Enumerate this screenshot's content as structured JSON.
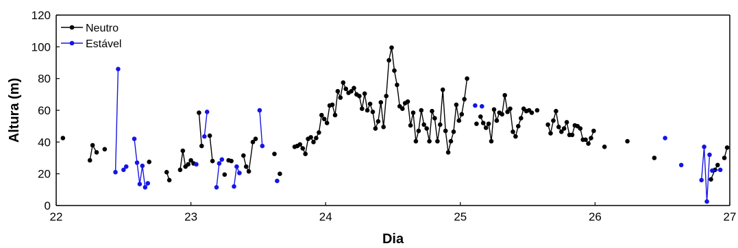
{
  "chart_data": {
    "type": "scatter",
    "title": "",
    "xlabel": "Dia",
    "ylabel": "Altura (m)",
    "xlim": [
      22,
      27
    ],
    "ylim": [
      0,
      120
    ],
    "xticks": [
      22,
      23,
      24,
      25,
      26,
      27
    ],
    "yticks": [
      0,
      20,
      40,
      60,
      80,
      100,
      120
    ],
    "grid": false,
    "legend_position": "top-left",
    "series": [
      {
        "name": "Neutro",
        "color": "#000000",
        "segments": [
          [
            [
              22.05,
              42.5
            ]
          ],
          [
            [
              22.25,
              28.5
            ],
            [
              22.27,
              38
            ],
            [
              22.3,
              33.5
            ]
          ],
          [
            [
              22.36,
              35.5
            ]
          ],
          [
            [
              22.69,
              27.5
            ]
          ],
          [
            [
              22.82,
              21
            ],
            [
              22.84,
              16
            ]
          ],
          [
            [
              22.92,
              22.5
            ],
            [
              22.94,
              34.5
            ],
            [
              22.96,
              24.5
            ],
            [
              22.98,
              26
            ],
            [
              23.0,
              28.5
            ],
            [
              23.02,
              26.5
            ]
          ],
          [
            [
              23.06,
              58.5
            ],
            [
              23.08,
              37.5
            ]
          ],
          [
            [
              23.14,
              44
            ],
            [
              23.16,
              28
            ]
          ],
          [
            [
              23.25,
              19.5
            ]
          ],
          [
            [
              23.28,
              28.5
            ],
            [
              23.3,
              28
            ]
          ],
          [
            [
              23.39,
              31.5
            ],
            [
              23.41,
              24.5
            ],
            [
              23.43,
              21.5
            ],
            [
              23.46,
              40
            ],
            [
              23.48,
              42
            ]
          ],
          [
            [
              23.62,
              32.5
            ]
          ],
          [
            [
              23.66,
              20
            ]
          ],
          [
            [
              23.77,
              37
            ],
            [
              23.79,
              37.5
            ],
            [
              23.81,
              38.5
            ],
            [
              23.83,
              36
            ],
            [
              23.85,
              32.5
            ],
            [
              23.87,
              42
            ],
            [
              23.89,
              43
            ],
            [
              23.91,
              40
            ],
            [
              23.93,
              42.5
            ],
            [
              23.95,
              46
            ],
            [
              23.97,
              57
            ],
            [
              23.99,
              54.5
            ],
            [
              24.01,
              52
            ],
            [
              24.03,
              63
            ],
            [
              24.05,
              63.5
            ],
            [
              24.07,
              57
            ],
            [
              24.09,
              72
            ],
            [
              24.11,
              68
            ],
            [
              24.13,
              77.5
            ],
            [
              24.15,
              73.5
            ],
            [
              24.17,
              71
            ],
            [
              24.19,
              72
            ],
            [
              24.21,
              74
            ],
            [
              24.23,
              70
            ],
            [
              24.25,
              69
            ],
            [
              24.27,
              61
            ],
            [
              24.29,
              70.5
            ],
            [
              24.31,
              60
            ],
            [
              24.33,
              64
            ],
            [
              24.35,
              59
            ],
            [
              24.37,
              48.5
            ],
            [
              24.39,
              53
            ],
            [
              24.41,
              65
            ],
            [
              24.43,
              49.5
            ],
            [
              24.45,
              69
            ],
            [
              24.47,
              91.5
            ],
            [
              24.49,
              99.5
            ],
            [
              24.51,
              85
            ],
            [
              24.53,
              76
            ],
            [
              24.55,
              62.5
            ],
            [
              24.57,
              61
            ],
            [
              24.59,
              64.5
            ],
            [
              24.61,
              65.5
            ],
            [
              24.63,
              50.5
            ],
            [
              24.65,
              58.5
            ],
            [
              24.67,
              40.5
            ],
            [
              24.69,
              47
            ],
            [
              24.71,
              60
            ],
            [
              24.73,
              51
            ],
            [
              24.75,
              48.5
            ],
            [
              24.77,
              40.5
            ],
            [
              24.79,
              59.5
            ],
            [
              24.81,
              55
            ],
            [
              24.83,
              40.5
            ],
            [
              24.85,
              51
            ],
            [
              24.87,
              73
            ],
            [
              24.89,
              47
            ],
            [
              24.91,
              33.5
            ],
            [
              24.93,
              40.5
            ],
            [
              24.95,
              46.5
            ],
            [
              24.97,
              63.5
            ],
            [
              24.99,
              53.5
            ],
            [
              25.01,
              57.5
            ],
            [
              25.03,
              67
            ],
            [
              25.05,
              80
            ]
          ],
          [
            [
              25.12,
              51.5
            ]
          ],
          [
            [
              25.15,
              56
            ],
            [
              25.17,
              52
            ],
            [
              25.19,
              49
            ],
            [
              25.21,
              51.5
            ],
            [
              25.23,
              40.5
            ],
            [
              25.25,
              60.5
            ],
            [
              25.27,
              53.5
            ],
            [
              25.29,
              58.5
            ],
            [
              25.31,
              57.5
            ],
            [
              25.33,
              69.5
            ],
            [
              25.35,
              59
            ],
            [
              25.37,
              61
            ],
            [
              25.39,
              46.5
            ],
            [
              25.41,
              43.5
            ],
            [
              25.43,
              50
            ],
            [
              25.45,
              55
            ],
            [
              25.47,
              61
            ],
            [
              25.49,
              59.5
            ],
            [
              25.51,
              60
            ],
            [
              25.53,
              58.5
            ]
          ],
          [
            [
              25.57,
              60
            ]
          ],
          [
            [
              25.65,
              51
            ],
            [
              25.67,
              45.5
            ],
            [
              25.69,
              53.5
            ],
            [
              25.71,
              59.5
            ],
            [
              25.73,
              49.5
            ],
            [
              25.75,
              46.5
            ],
            [
              25.77,
              48.5
            ],
            [
              25.79,
              52.5
            ],
            [
              25.81,
              44.5
            ],
            [
              25.83,
              44.5
            ],
            [
              25.85,
              50.5
            ],
            [
              25.87,
              50
            ],
            [
              25.89,
              48.5
            ],
            [
              25.91,
              41.5
            ],
            [
              25.93,
              41.5
            ],
            [
              25.95,
              39
            ],
            [
              25.97,
              42.5
            ],
            [
              25.99,
              47
            ]
          ],
          [
            [
              26.07,
              37
            ]
          ],
          [
            [
              26.24,
              40.5
            ]
          ],
          [
            [
              26.44,
              30
            ]
          ],
          [
            [
              26.86,
              16.5
            ],
            [
              26.89,
              22.5
            ],
            [
              26.91,
              25.5
            ]
          ],
          [
            [
              26.96,
              30
            ],
            [
              26.98,
              36.5
            ]
          ]
        ]
      },
      {
        "name": "Estável",
        "color": "#1515e6",
        "segments": [
          [
            [
              22.44,
              21
            ],
            [
              22.46,
              86
            ]
          ],
          [
            [
              22.5,
              22.5
            ],
            [
              22.52,
              24.5
            ]
          ],
          [
            [
              22.58,
              42
            ],
            [
              22.6,
              27
            ],
            [
              22.62,
              13.5
            ],
            [
              22.64,
              25
            ],
            [
              22.66,
              11.5
            ],
            [
              22.68,
              14
            ]
          ],
          [
            [
              23.04,
              26
            ]
          ],
          [
            [
              23.1,
              43.5
            ],
            [
              23.12,
              59
            ]
          ],
          [
            [
              23.19,
              11.5
            ],
            [
              23.21,
              26.5
            ],
            [
              23.23,
              29
            ]
          ],
          [
            [
              23.32,
              12
            ],
            [
              23.34,
              24.5
            ],
            [
              23.36,
              20.5
            ]
          ],
          [
            [
              23.51,
              60
            ],
            [
              23.53,
              37.5
            ]
          ],
          [
            [
              23.64,
              15.5
            ]
          ],
          [
            [
              25.11,
              63
            ]
          ],
          [
            [
              25.16,
              62.5
            ]
          ],
          [
            [
              26.52,
              42.5
            ]
          ],
          [
            [
              26.64,
              25.5
            ]
          ],
          [
            [
              26.79,
              16
            ],
            [
              26.81,
              37
            ],
            [
              26.83,
              2.5
            ],
            [
              26.85,
              32
            ]
          ],
          [
            [
              26.87,
              22
            ],
            [
              26.93,
              22.5
            ]
          ]
        ]
      }
    ]
  }
}
